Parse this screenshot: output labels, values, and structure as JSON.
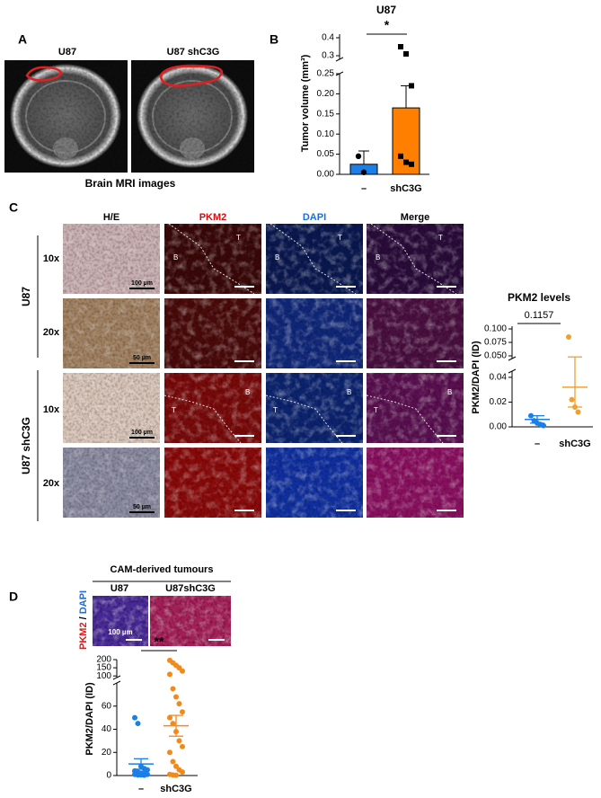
{
  "figure": {
    "panel_labels": [
      "A",
      "B",
      "C",
      "D"
    ],
    "a": {
      "titles": [
        "U87",
        "U87 shC3G"
      ],
      "caption": "Brain MRI images"
    },
    "c": {
      "columns": [
        "H/E",
        "PKM2",
        "DAPI",
        "Merge"
      ],
      "magnifications": [
        "10x",
        "20x",
        "10x",
        "20x"
      ],
      "groups": [
        "U87",
        "U87 shC3G"
      ],
      "scale_bars": [
        "100 µm",
        "50 µm"
      ],
      "regions": [
        "B",
        "T"
      ]
    },
    "d": {
      "header": "CAM-derived tumours",
      "columns": [
        "U87",
        "U87shC3G"
      ],
      "stain": [
        "PKM2",
        " / ",
        "DAPI"
      ],
      "scale_bar": "100 µm"
    }
  },
  "chart_data": [
    {
      "type": "bar",
      "title": "U87",
      "ylabel": "Tumor volume (mm³)",
      "significance": "*",
      "categories": [
        "–",
        "shC3G"
      ],
      "values": [
        0.025,
        0.165
      ],
      "errors": [
        0.033,
        0.055
      ],
      "colors": [
        "#1c7fe6",
        "#ff8000"
      ],
      "point_color": "#000000",
      "points": [
        [
          0.045,
          0.005
        ],
        [
          0.35,
          0.31,
          0.22,
          0.045,
          0.03,
          0.025
        ]
      ],
      "y_segments": [
        {
          "ylim": [
            0,
            0.25
          ],
          "yticks": [
            {
              "value": 0,
              "label": "0.00"
            },
            0.05,
            {
              "value": 0.1,
              "label": "0.10"
            },
            0.15,
            {
              "value": 0.2,
              "label": "0.20"
            },
            0.25
          ]
        },
        {
          "ylim": [
            0.28,
            0.42
          ],
          "yticks": [
            0.3,
            0.4
          ]
        }
      ]
    },
    {
      "type": "strip",
      "title": "PKM2 levels",
      "ylabel": "PKM2/DAPI (ID)",
      "annotation": "0.1157",
      "categories": [
        "–",
        "shC3G"
      ],
      "values": [
        0.006,
        0.032
      ],
      "errors": [
        0.003,
        0.016
      ],
      "colors": [
        "#1c7fe6",
        "#f0a030"
      ],
      "points": [
        [
          0.009,
          0.005,
          0.003,
          0.002,
          0.001
        ],
        [
          0.085,
          0.022,
          0.016,
          0.012
        ]
      ],
      "y_segments": [
        {
          "ylim": [
            0,
            0.045
          ],
          "yticks": [
            {
              "value": 0,
              "label": "0.00"
            },
            0.02,
            0.04
          ]
        },
        {
          "ylim": [
            0.045,
            0.105
          ],
          "yticks": [
            {
              "value": 0.05,
              "label": "0.050"
            },
            0.075,
            {
              "value": 0.1,
              "label": "0.100"
            }
          ]
        }
      ]
    },
    {
      "type": "strip",
      "ylabel": "PKM2/DAPI (ID)",
      "significance": "**",
      "categories": [
        "–",
        "shC3G"
      ],
      "values": [
        10,
        43
      ],
      "errors": [
        4.5,
        9
      ],
      "colors": [
        "#1c7fe6",
        "#f08a1c"
      ],
      "points": [
        [
          50,
          45,
          8,
          6,
          5,
          4,
          3,
          2,
          2,
          1,
          1,
          0.5,
          0.5,
          0.3
        ],
        [
          195,
          180,
          165,
          150,
          130,
          110,
          75,
          68,
          62,
          55,
          50,
          45,
          38,
          30,
          25,
          20,
          12,
          8,
          5,
          3,
          1,
          0.5,
          0.2
        ]
      ],
      "y_segments": [
        {
          "ylim": [
            0,
            80
          ],
          "yticks": [
            0,
            20,
            40,
            60
          ]
        },
        {
          "ylim": [
            90,
            200
          ],
          "yticks": [
            100,
            150,
            200
          ]
        }
      ]
    }
  ]
}
